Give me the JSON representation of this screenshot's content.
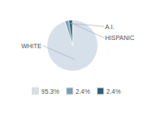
{
  "chart_data": {
    "type": "pie",
    "categories": [
      "WHITE",
      "A.I.",
      "HISPANIC"
    ],
    "values": [
      95.3,
      2.4,
      2.4
    ],
    "value_labels": [
      "95.3%",
      "2.4%",
      "2.4%"
    ],
    "colors": [
      "#d6e0ea",
      "#7a9db5",
      "#2e5f7a"
    ],
    "legend": "bottom"
  }
}
